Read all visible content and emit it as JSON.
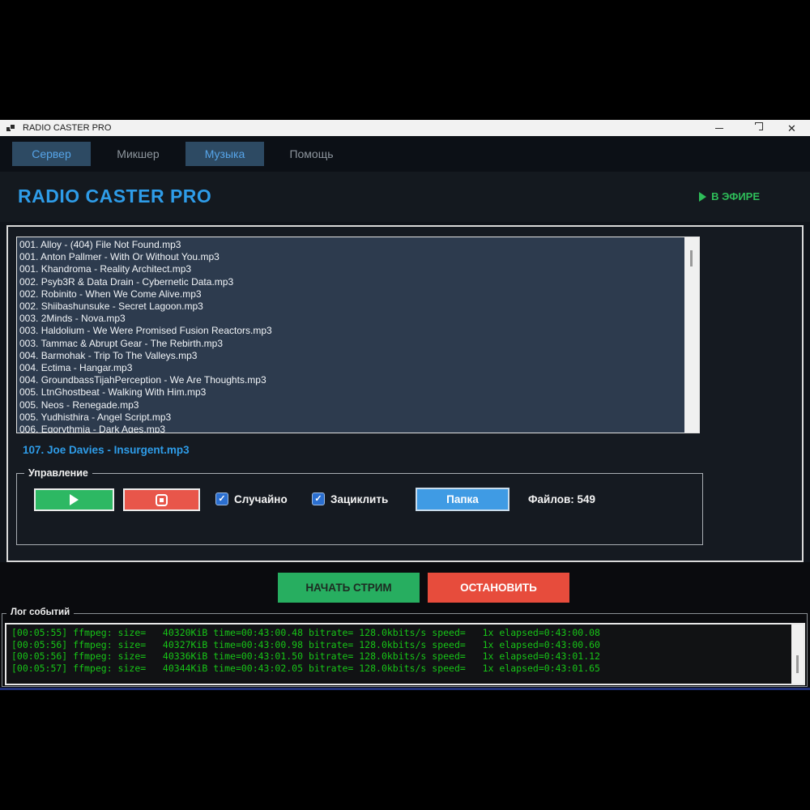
{
  "window": {
    "title": "RADIO CASTER PRO"
  },
  "tabs": [
    {
      "label": "Сервер",
      "active": true
    },
    {
      "label": "Микшер",
      "active": false
    },
    {
      "label": "Музыка",
      "active": true
    },
    {
      "label": "Помощь",
      "active": false
    }
  ],
  "header": {
    "app_title": "RADIO CASTER PRO",
    "status_label": "В ЭФИРЕ"
  },
  "playlist": {
    "items": [
      "001. Alloy - (404) File Not Found.mp3",
      "001. Anton Pallmer - With Or Without You.mp3",
      "001. Khandroma - Reality Architect.mp3",
      "002. Psyb3R & Data Drain - Cybernetic Data.mp3",
      "002. Robinito - When We Come Alive.mp3",
      "002. Shiibashunsuke - Secret Lagoon.mp3",
      "003. 2Minds - Nova.mp3",
      "003. Haldolium - We Were Promised Fusion Reactors.mp3",
      "003. Tammac & Abrupt Gear - The Rebirth.mp3",
      "004. Barmohak - Trip To The Valleys.mp3",
      "004. Ectima - Hangar.mp3",
      "004. GroundbassTijahPerception - We Are Thoughts.mp3",
      "005. LtnGhostbeat - Walking With Him.mp3",
      "005. Neos - Renegade.mp3",
      "005. Yudhisthira - Angel Script.mp3",
      "006. Egorythmia - Dark Ages.mp3"
    ]
  },
  "current_track": "107. Joe Davies - Insurgent.mp3",
  "controls": {
    "legend": "Управление",
    "shuffle_label": "Случайно",
    "shuffle_checked": true,
    "loop_label": "Зациклить",
    "loop_checked": true,
    "folder_button": "Папка",
    "files_count_label": "Файлов: 549"
  },
  "stream": {
    "start_button": "НАЧАТЬ СТРИМ",
    "stop_button": "ОСТАНОВИТЬ"
  },
  "log": {
    "legend": "Лог событий",
    "lines": [
      "[00:05:55] ffmpeg: size=   40320KiB time=00:43:00.48 bitrate= 128.0kbits/s speed=   1x elapsed=0:43:00.08",
      "[00:05:56] ffmpeg: size=   40327KiB time=00:43:00.98 bitrate= 128.0kbits/s speed=   1x elapsed=0:43:00.60",
      "[00:05:56] ffmpeg: size=   40336KiB time=00:43:01.50 bitrate= 128.0kbits/s speed=   1x elapsed=0:43:01.12",
      "[00:05:57] ffmpeg: size=   40344KiB time=00:43:02.05 bitrate= 128.0kbits/s speed=   1x elapsed=0:43:01.65"
    ]
  },
  "icons": {
    "check_icon": "✓",
    "close_icon": "✕",
    "live_play_icon": "play-triangle",
    "play_icon": "play-triangle",
    "stop_icon": "stop-square"
  },
  "colors": {
    "accent_blue": "#2e9ce8",
    "live_green": "#2ebd59",
    "play_green": "#2db863",
    "start_green": "#27ae60",
    "stop_red": "#e74c3c",
    "folder_blue": "#3f9be4",
    "checkbox_blue": "#2b6fd0",
    "log_green": "#17c517",
    "playlist_bg": "#2d3b4e",
    "panel_bg": "#151a21",
    "tab_active_bg": "#2d4a63"
  }
}
